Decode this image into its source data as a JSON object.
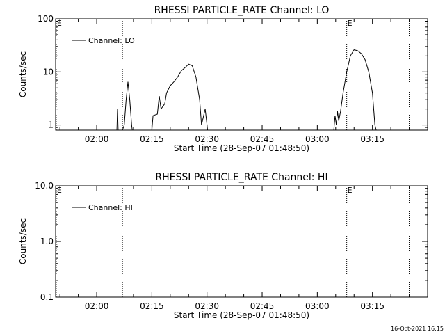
{
  "footer": {
    "timestamp": "16-Oct-2021 16:15"
  },
  "chart_data": [
    {
      "type": "line",
      "title": "RHESSI PARTICLE_RATE Channel: LO",
      "xlabel": "Start Time (28-Sep-07 01:48:50)",
      "ylabel": "Counts/sec",
      "yscale": "log",
      "xlim": [
        "01:48:50",
        "03:30:00"
      ],
      "ylim": [
        0.8,
        100
      ],
      "x_ticks": [
        "02:00",
        "02:15",
        "02:30",
        "02:45",
        "03:00",
        "03:15"
      ],
      "y_ticks": [
        "1",
        "10",
        "100"
      ],
      "legend": {
        "position": "top-left",
        "entries": [
          "Channel: LO"
        ]
      },
      "markers": [
        {
          "label": "E",
          "time": "01:49:00"
        },
        {
          "label": "",
          "time": "02:07:00"
        },
        {
          "label": "E",
          "time": "03:08:00"
        },
        {
          "label": "",
          "time": "03:25:00"
        }
      ],
      "series": [
        {
          "name": "Channel: LO",
          "segments": [
            [
              [
                "02:05:30",
                0.8
              ],
              [
                "02:05:40",
                2.0
              ],
              [
                "02:05:50",
                0.8
              ]
            ],
            [
              [
                "02:07:00",
                0.8
              ],
              [
                "02:07:30",
                1.0
              ],
              [
                "02:08:00",
                3.0
              ],
              [
                "02:08:30",
                6.5
              ],
              [
                "02:09:00",
                3.0
              ],
              [
                "02:09:30",
                1.0
              ],
              [
                "02:09:40",
                0.8
              ]
            ],
            [
              [
                "02:15:00",
                0.8
              ],
              [
                "02:15:20",
                1.5
              ],
              [
                "02:16:30",
                1.6
              ],
              [
                "02:17:00",
                3.5
              ],
              [
                "02:17:30",
                2.0
              ],
              [
                "02:18:30",
                2.5
              ],
              [
                "02:19:00",
                4.0
              ],
              [
                "02:20:00",
                5.5
              ],
              [
                "02:21:00",
                6.5
              ],
              [
                "02:22:00",
                8.0
              ],
              [
                "02:23:00",
                10.5
              ],
              [
                "02:24:00",
                12.0
              ],
              [
                "02:25:00",
                14.0
              ],
              [
                "02:26:00",
                13.0
              ],
              [
                "02:27:00",
                8.0
              ],
              [
                "02:28:00",
                3.0
              ],
              [
                "02:28:30",
                1.0
              ],
              [
                "02:29:30",
                2.0
              ],
              [
                "02:30:00",
                1.0
              ],
              [
                "02:30:10",
                0.8
              ]
            ],
            [
              [
                "03:04:30",
                0.8
              ],
              [
                "03:04:50",
                1.5
              ],
              [
                "03:05:10",
                1.0
              ],
              [
                "03:05:30",
                1.8
              ],
              [
                "03:05:50",
                1.2
              ],
              [
                "03:06:20",
                1.8
              ],
              [
                "03:07:00",
                4.0
              ],
              [
                "03:08:00",
                10.0
              ],
              [
                "03:09:00",
                20.0
              ],
              [
                "03:10:00",
                26.0
              ],
              [
                "03:11:00",
                25.0
              ],
              [
                "03:12:00",
                22.0
              ],
              [
                "03:13:00",
                17.0
              ],
              [
                "03:14:00",
                10.0
              ],
              [
                "03:15:00",
                4.0
              ],
              [
                "03:15:40",
                1.0
              ],
              [
                "03:16:00",
                0.8
              ]
            ]
          ]
        }
      ]
    },
    {
      "type": "line",
      "title": "RHESSI PARTICLE_RATE Channel: HI",
      "xlabel": "Start Time (28-Sep-07 01:48:50)",
      "ylabel": "Counts/sec",
      "yscale": "log",
      "xlim": [
        "01:48:50",
        "03:30:00"
      ],
      "ylim": [
        0.1,
        10
      ],
      "x_ticks": [
        "02:00",
        "02:15",
        "02:30",
        "02:45",
        "03:00",
        "03:15"
      ],
      "y_ticks": [
        "0.1",
        "1.0",
        "10.0"
      ],
      "legend": {
        "position": "top-left",
        "entries": [
          "Channel: HI"
        ]
      },
      "markers": [
        {
          "label": "E",
          "time": "01:49:00"
        },
        {
          "label": "",
          "time": "02:07:00"
        },
        {
          "label": "E",
          "time": "03:08:00"
        },
        {
          "label": "",
          "time": "03:25:00"
        }
      ],
      "series": [
        {
          "name": "Channel: HI",
          "segments": []
        }
      ]
    }
  ]
}
